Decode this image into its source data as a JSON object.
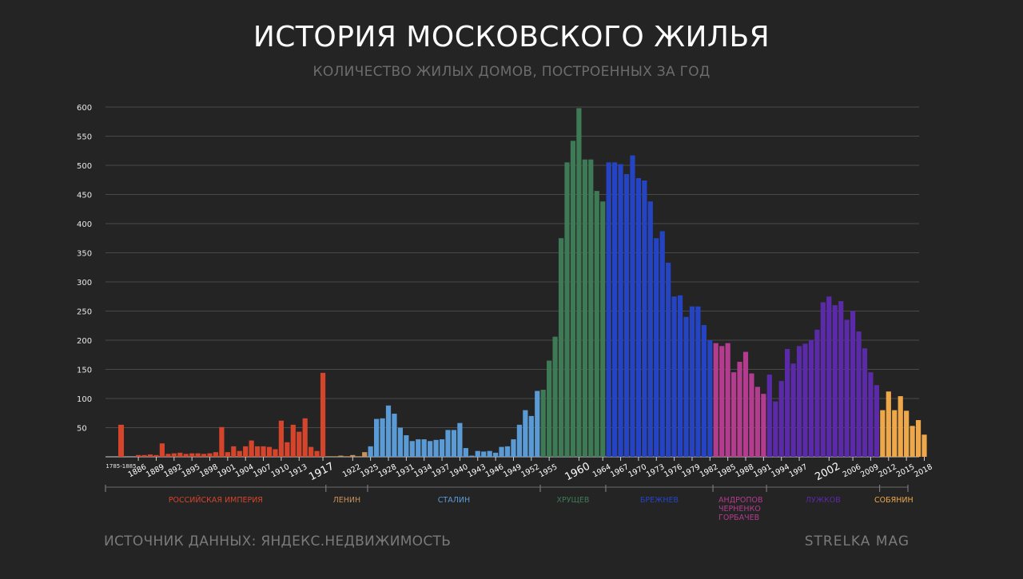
{
  "header": {
    "title": "ИСТОРИЯ МОСКОВСКОГО ЖИЛЬЯ",
    "subtitle": "КОЛИЧЕСТВО ЖИЛЫХ ДОМОВ, ПОСТРОЕННЫХ ЗА ГОД"
  },
  "footer": {
    "source": "ИСТОЧНИК ДАННЫХ: ЯНДЕКС.НЕДВИЖИМОСТЬ",
    "brand": "STRELKA MAG"
  },
  "chart_data": {
    "type": "bar",
    "title": "ИСТОРИЯ МОСКОВСКОГО ЖИЛЬЯ",
    "subtitle": "КОЛИЧЕСТВО ЖИЛЫХ ДОМОВ, ПОСТРОЕННЫХ ЗА ГОД",
    "xlabel": "",
    "ylabel": "",
    "ylim": [
      0,
      600
    ],
    "yticks": [
      50,
      100,
      150,
      200,
      250,
      300,
      350,
      400,
      450,
      500,
      550,
      600
    ],
    "grid": true,
    "first_label": "1785-1885",
    "first_value": 55,
    "start_year": 1885,
    "end_year": 2018,
    "values": [
      3,
      3,
      4,
      3,
      23,
      5,
      6,
      7,
      5,
      6,
      6,
      5,
      6,
      8,
      51,
      8,
      18,
      10,
      18,
      28,
      18,
      18,
      17,
      13,
      62,
      25,
      55,
      43,
      66,
      17,
      10,
      144,
      1,
      1,
      2,
      1,
      3,
      1,
      8,
      18,
      65,
      66,
      88,
      74,
      50,
      37,
      27,
      30,
      30,
      27,
      29,
      30,
      46,
      46,
      58,
      15,
      2,
      10,
      9,
      10,
      7,
      17,
      18,
      30,
      55,
      80,
      70,
      113,
      115,
      165,
      206,
      375,
      505,
      542,
      598,
      510,
      510,
      456,
      438,
      505,
      505,
      502,
      485,
      517,
      478,
      474,
      438,
      375,
      387,
      333,
      275,
      277,
      240,
      258,
      258,
      226,
      200,
      195,
      190,
      195,
      145,
      163,
      180,
      143,
      120,
      108,
      141,
      95,
      130,
      185,
      160,
      190,
      194,
      200,
      218,
      265,
      275,
      260,
      267,
      235,
      250,
      215,
      186,
      145,
      123,
      80,
      112,
      80,
      104,
      79,
      53,
      63,
      38
    ],
    "tick_labels": [
      {
        "year": 1886,
        "label": "1886"
      },
      {
        "year": 1889,
        "label": "1889"
      },
      {
        "year": 1892,
        "label": "1892"
      },
      {
        "year": 1895,
        "label": "1895"
      },
      {
        "year": 1898,
        "label": "1898"
      },
      {
        "year": 1901,
        "label": "1901"
      },
      {
        "year": 1904,
        "label": "1904"
      },
      {
        "year": 1907,
        "label": "1907"
      },
      {
        "year": 1910,
        "label": "1910"
      },
      {
        "year": 1913,
        "label": "1913"
      },
      {
        "year": 1917,
        "label": "1917",
        "major": true
      },
      {
        "year": 1922,
        "label": "1922"
      },
      {
        "year": 1925,
        "label": "1925"
      },
      {
        "year": 1928,
        "label": "1928"
      },
      {
        "year": 1931,
        "label": "1931"
      },
      {
        "year": 1934,
        "label": "1934"
      },
      {
        "year": 1937,
        "label": "1937"
      },
      {
        "year": 1940,
        "label": "1940"
      },
      {
        "year": 1943,
        "label": "1943"
      },
      {
        "year": 1946,
        "label": "1946"
      },
      {
        "year": 1949,
        "label": "1949"
      },
      {
        "year": 1952,
        "label": "1952"
      },
      {
        "year": 1955,
        "label": "1955"
      },
      {
        "year": 1960,
        "label": "1960",
        "major": true
      },
      {
        "year": 1964,
        "label": "1964"
      },
      {
        "year": 1967,
        "label": "1967"
      },
      {
        "year": 1970,
        "label": "1970"
      },
      {
        "year": 1973,
        "label": "1973"
      },
      {
        "year": 1976,
        "label": "1976"
      },
      {
        "year": 1979,
        "label": "1979"
      },
      {
        "year": 1982,
        "label": "1982"
      },
      {
        "year": 1985,
        "label": "1985"
      },
      {
        "year": 1988,
        "label": "1988"
      },
      {
        "year": 1991,
        "label": "1991"
      },
      {
        "year": 1994,
        "label": "1994"
      },
      {
        "year": 1997,
        "label": "1997"
      },
      {
        "year": 2002,
        "label": "2002",
        "major": true
      },
      {
        "year": 2006,
        "label": "2006"
      },
      {
        "year": 2009,
        "label": "2009"
      },
      {
        "year": 2012,
        "label": "2012"
      },
      {
        "year": 2015,
        "label": "2015"
      },
      {
        "year": 2018,
        "label": "2018"
      }
    ],
    "eras": [
      {
        "name": "РОССИЙСКАЯ ИМПЕРИЯ",
        "from": 1785,
        "to": 1917,
        "color": "#d4452c"
      },
      {
        "name": "ЛЕНИН",
        "from": 1918,
        "to": 1924,
        "color": "#c8925a"
      },
      {
        "name": "СТАЛИН",
        "from": 1925,
        "to": 1953,
        "color": "#5b9bd5"
      },
      {
        "name": "ХРУЩЕВ",
        "from": 1954,
        "to": 1964,
        "color": "#3f7a56"
      },
      {
        "name": "БРЕЖНЕВ",
        "from": 1965,
        "to": 1982,
        "color": "#2444c4"
      },
      {
        "name": "АНДРОПОВ\nЧЕРНЕНКО\nГОРБАЧЕВ",
        "from": 1983,
        "to": 1991,
        "color": "#b33c8e"
      },
      {
        "name": "ЛУЖКОВ",
        "from": 1992,
        "to": 2010,
        "color": "#5b2aa8"
      },
      {
        "name": "СОБЯНИН",
        "from": 2011,
        "to": 2018,
        "color": "#eea84a"
      }
    ]
  }
}
